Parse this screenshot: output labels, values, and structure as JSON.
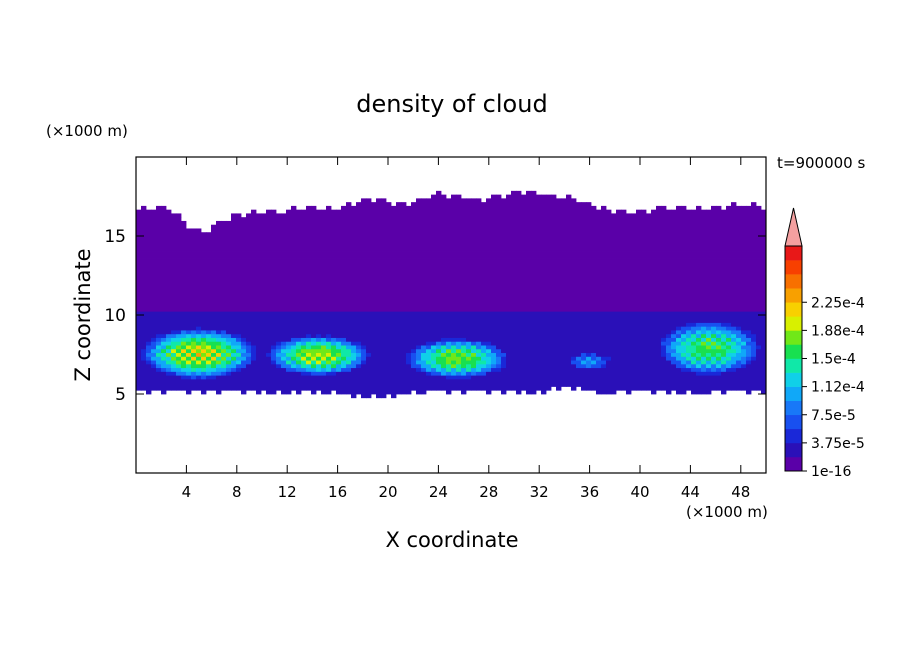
{
  "chart_data": {
    "type": "heatmap",
    "title": "density of cloud",
    "xlabel": "X coordinate",
    "ylabel": "Z coordinate",
    "x_unit": "(×1000 m)",
    "y_unit": "(×1000 m)",
    "time_label": "t=900000 s",
    "xlim": [
      0,
      50
    ],
    "ylim": [
      0,
      20
    ],
    "x_ticks": [
      4,
      8,
      12,
      16,
      20,
      24,
      28,
      32,
      36,
      40,
      44,
      48
    ],
    "y_ticks": [
      5,
      10,
      15
    ],
    "colorbar": {
      "labels": [
        "1e-16",
        "3.75e-5",
        "7.5e-5",
        "1.12e-4",
        "1.5e-4",
        "1.88e-4",
        "2.25e-4"
      ],
      "colors": [
        "#5a00a8",
        "#2a10b8",
        "#1a28d8",
        "#1850f0",
        "#1878f8",
        "#10a8f8",
        "#10d0e8",
        "#10e8a8",
        "#18e050",
        "#70e818",
        "#d8f000",
        "#f8d000",
        "#f8a000",
        "#f87000",
        "#f84000",
        "#e81818"
      ],
      "extend_color": "#f4a0a0"
    },
    "field": {
      "top_km": [
        16.6,
        16.7,
        15.2,
        16.2,
        16.7,
        16.6,
        16.9,
        17.2,
        17.1,
        17.6,
        17.4,
        17.6,
        17.8,
        17.5,
        16.7,
        16.6,
        16.7,
        16.8,
        16.8,
        16.9
      ],
      "bottom_km": [
        5.2,
        5.2,
        5.2,
        5.2,
        5.0,
        5.2,
        5.0,
        4.8,
        5.0,
        5.2,
        5.2,
        5.2,
        5.0,
        5.5,
        5.0,
        5.2,
        5.2,
        5.0,
        5.2,
        5.2
      ],
      "high_core": [
        {
          "x": [
            0,
            10
          ],
          "z": [
            6.0,
            9.5
          ],
          "peak": 0.00016
        },
        {
          "x": [
            10,
            19
          ],
          "z": [
            6.2,
            9.0
          ],
          "peak": 0.00015
        },
        {
          "x": [
            21,
            30
          ],
          "z": [
            6.0,
            8.8
          ],
          "peak": 0.00014
        },
        {
          "x": [
            34,
            38
          ],
          "z": [
            6.5,
            7.8
          ],
          "peak": 7.5e-05
        },
        {
          "x": [
            41,
            50
          ],
          "z": [
            6.2,
            10.0
          ],
          "peak": 0.00013
        }
      ]
    }
  }
}
